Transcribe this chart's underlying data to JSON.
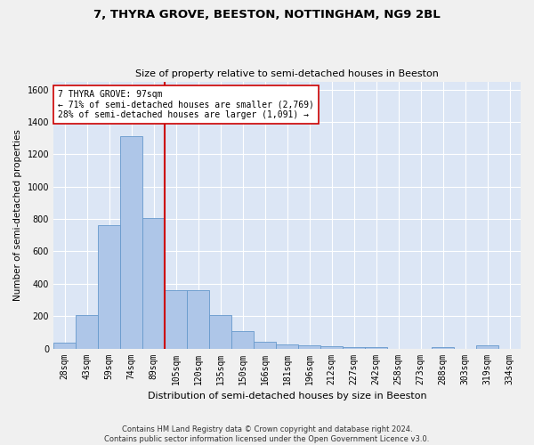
{
  "title": "7, THYRA GROVE, BEESTON, NOTTINGHAM, NG9 2BL",
  "subtitle": "Size of property relative to semi-detached houses in Beeston",
  "xlabel": "Distribution of semi-detached houses by size in Beeston",
  "ylabel": "Number of semi-detached properties",
  "footnote1": "Contains HM Land Registry data © Crown copyright and database right 2024.",
  "footnote2": "Contains public sector information licensed under the Open Government Licence v3.0.",
  "categories": [
    "28sqm",
    "43sqm",
    "59sqm",
    "74sqm",
    "89sqm",
    "105sqm",
    "120sqm",
    "135sqm",
    "150sqm",
    "166sqm",
    "181sqm",
    "196sqm",
    "212sqm",
    "227sqm",
    "242sqm",
    "258sqm",
    "273sqm",
    "288sqm",
    "303sqm",
    "319sqm",
    "334sqm"
  ],
  "values": [
    35,
    205,
    760,
    1310,
    805,
    360,
    360,
    205,
    110,
    40,
    25,
    20,
    15,
    10,
    10,
    0,
    0,
    10,
    0,
    20,
    0
  ],
  "bar_color": "#aec6e8",
  "bar_edge_color": "#6699cc",
  "annotation_label": "7 THYRA GROVE: 97sqm",
  "annotation_line1": "← 71% of semi-detached houses are smaller (2,769)",
  "annotation_line2": "28% of semi-detached houses are larger (1,091) →",
  "vline_x_index": 4.5,
  "vline_color": "#cc0000",
  "annotation_box_color": "#ffffff",
  "annotation_box_edge": "#cc0000",
  "ylim": [
    0,
    1650
  ],
  "yticks": [
    0,
    200,
    400,
    600,
    800,
    1000,
    1200,
    1400,
    1600
  ],
  "bg_color": "#dce6f5",
  "fig_bg_color": "#f0f0f0",
  "grid_color": "#ffffff",
  "title_fontsize": 9.5,
  "subtitle_fontsize": 8,
  "xlabel_fontsize": 8,
  "ylabel_fontsize": 7.5,
  "tick_fontsize": 7,
  "annotation_fontsize": 7,
  "footnote_fontsize": 6
}
